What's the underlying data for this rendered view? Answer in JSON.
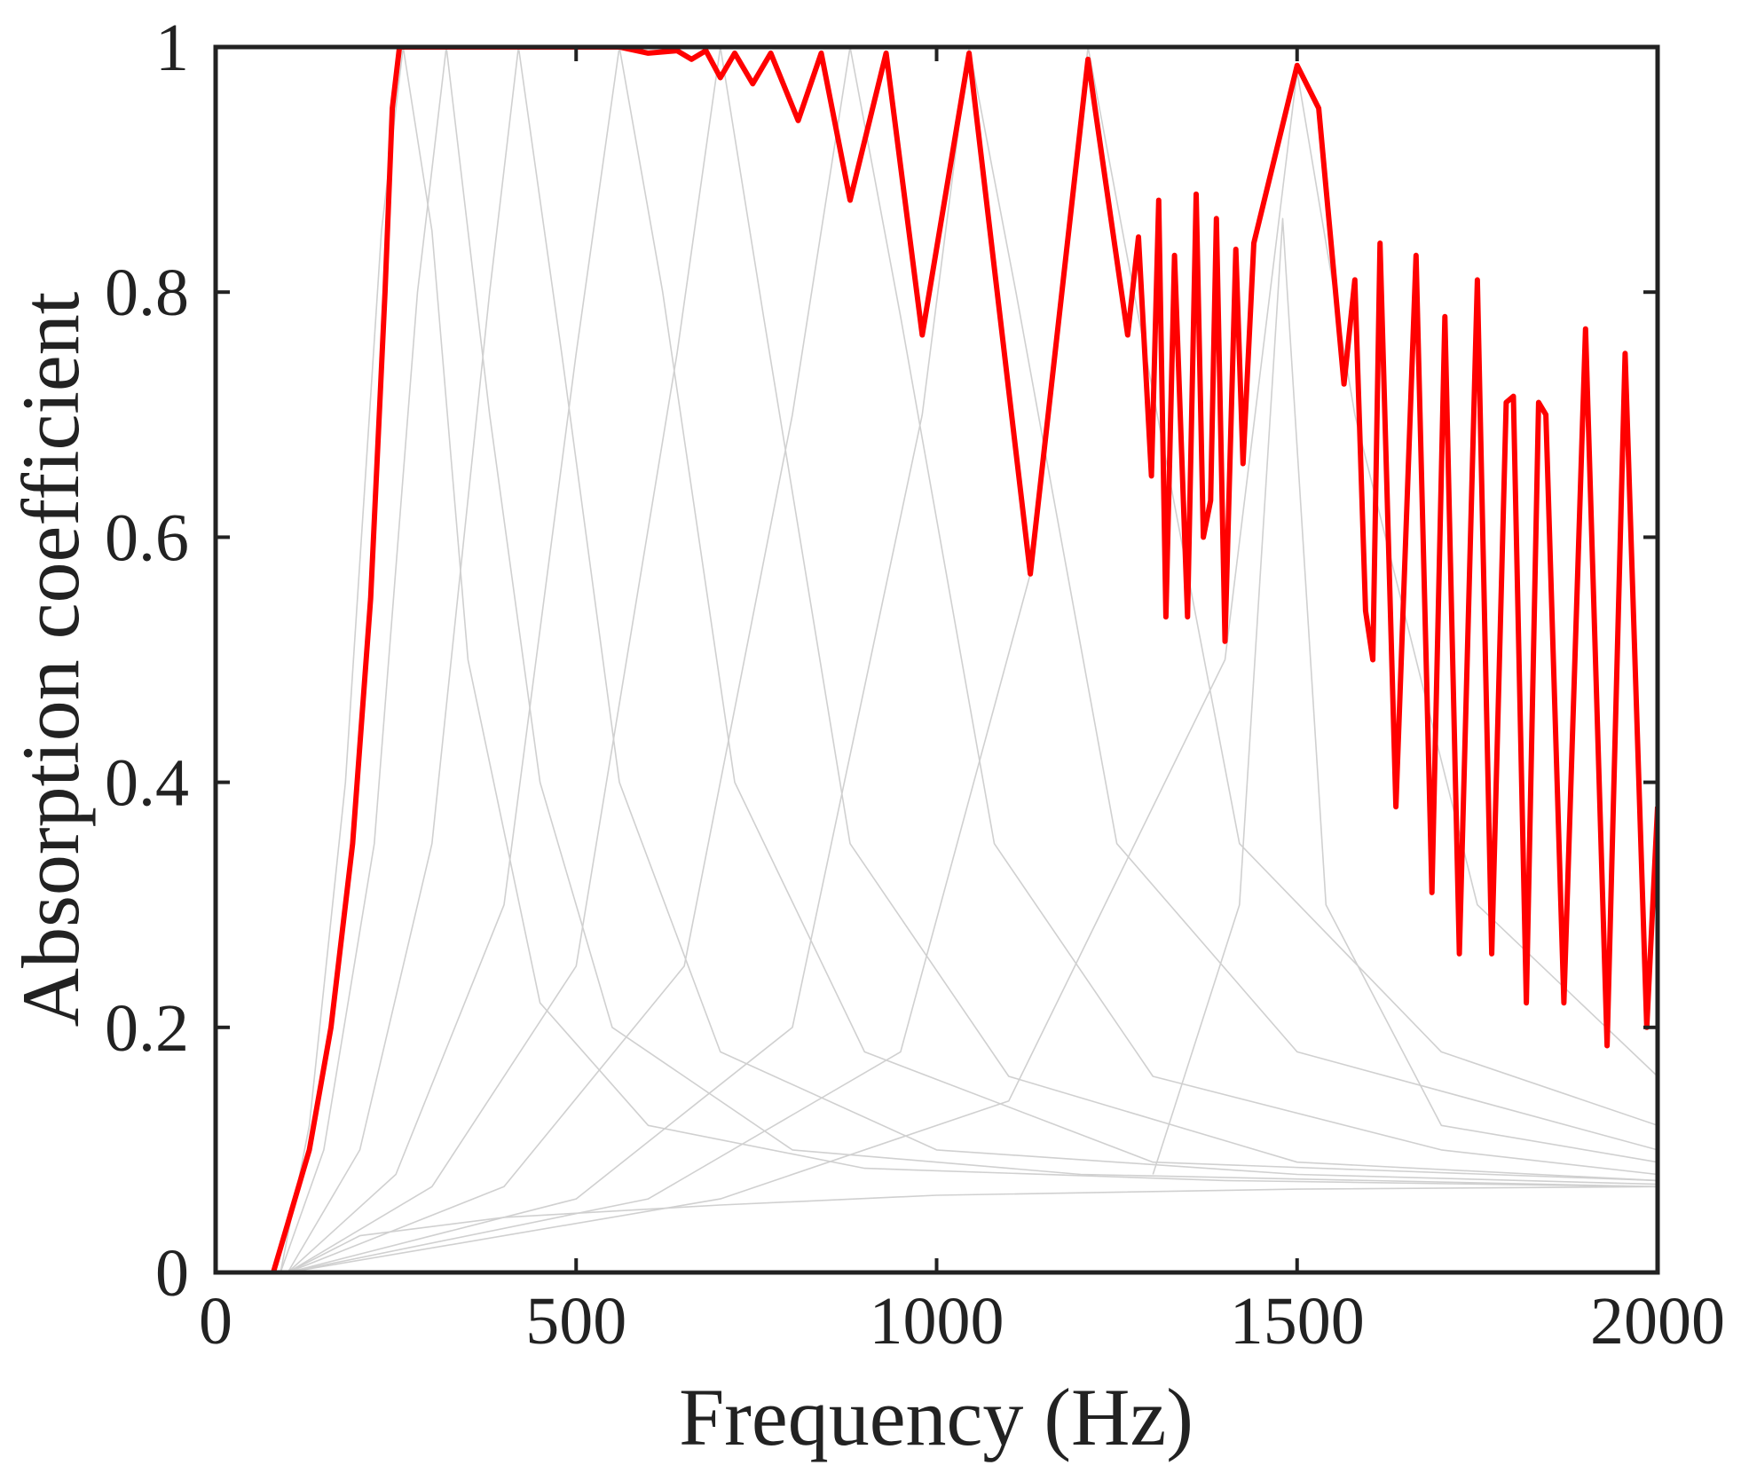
{
  "chart_data": {
    "type": "line",
    "xlabel": "Frequency (Hz)",
    "ylabel": "Absorption coefficient",
    "xlim": [
      0,
      2000
    ],
    "xticks": [
      0,
      500,
      1000,
      1500,
      2000
    ],
    "ylim": [
      0,
      1
    ],
    "yticks": [
      0,
      0.2,
      0.4,
      0.6,
      0.8,
      1
    ],
    "grid": false,
    "series": [
      {
        "color": "#d0d0d0",
        "x": [
          90,
          130,
          180,
          230,
          260,
          300,
          350,
          450,
          600,
          900,
          1400,
          2000
        ],
        "values": [
          0,
          0.12,
          0.4,
          0.85,
          1,
          0.85,
          0.5,
          0.22,
          0.12,
          0.085,
          0.075,
          0.07
        ]
      },
      {
        "color": "#d0d0d0",
        "x": [
          90,
          150,
          220,
          280,
          320,
          380,
          450,
          550,
          800,
          1200,
          2000
        ],
        "values": [
          0,
          0.1,
          0.35,
          0.8,
          1,
          0.7,
          0.4,
          0.2,
          0.1,
          0.08,
          0.07
        ]
      },
      {
        "color": "#d0d0d0",
        "x": [
          100,
          200,
          300,
          380,
          420,
          480,
          560,
          700,
          1000,
          1500,
          2000
        ],
        "values": [
          0,
          0.1,
          0.35,
          0.8,
          1,
          0.75,
          0.4,
          0.18,
          0.1,
          0.08,
          0.072
        ]
      },
      {
        "color": "#d0d0d0",
        "x": [
          100,
          250,
          400,
          500,
          560,
          620,
          720,
          900,
          1300,
          2000
        ],
        "values": [
          0,
          0.08,
          0.3,
          0.75,
          1,
          0.8,
          0.4,
          0.18,
          0.09,
          0.075
        ]
      },
      {
        "color": "#d0d0d0",
        "x": [
          100,
          300,
          500,
          640,
          700,
          760,
          880,
          1100,
          1500,
          2000
        ],
        "values": [
          0,
          0.07,
          0.25,
          0.75,
          1,
          0.78,
          0.35,
          0.16,
          0.09,
          0.075
        ]
      },
      {
        "color": "#d0d0d0",
        "x": [
          100,
          400,
          650,
          800,
          880,
          950,
          1080,
          1300,
          1700,
          2000
        ],
        "values": [
          0,
          0.07,
          0.25,
          0.7,
          1,
          0.78,
          0.35,
          0.16,
          0.1,
          0.08
        ]
      },
      {
        "color": "#d0d0d0",
        "x": [
          100,
          500,
          800,
          980,
          1045,
          1110,
          1250,
          1500,
          2000
        ],
        "values": [
          0,
          0.06,
          0.2,
          0.7,
          1,
          0.8,
          0.35,
          0.18,
          0.1
        ]
      },
      {
        "color": "#d0d0d0",
        "x": [
          100,
          600,
          950,
          1130,
          1210,
          1280,
          1420,
          1700,
          2000
        ],
        "values": [
          0,
          0.06,
          0.18,
          0.57,
          1,
          0.78,
          0.35,
          0.18,
          0.12
        ]
      },
      {
        "color": "#d0d0d0",
        "x": [
          100,
          700,
          1100,
          1400,
          1500,
          1580,
          1750,
          2000
        ],
        "values": [
          0,
          0.06,
          0.14,
          0.5,
          0.98,
          0.7,
          0.3,
          0.16
        ]
      },
      {
        "color": "#d0d0d0",
        "x": [
          1300,
          1420,
          1480,
          1540,
          1700,
          2000
        ],
        "values": [
          0.08,
          0.3,
          0.86,
          0.3,
          0.12,
          0.09
        ]
      },
      {
        "color": "#d0d0d0",
        "x": [
          100,
          200,
          400,
          700,
          1000,
          1500,
          2000
        ],
        "values": [
          0,
          0.03,
          0.045,
          0.055,
          0.063,
          0.068,
          0.07
        ]
      },
      {
        "color": "#ff0000",
        "x": [
          80,
          100,
          130,
          160,
          190,
          215,
          235,
          245,
          255,
          500,
          560,
          600,
          640,
          660,
          680,
          700,
          720,
          745,
          770,
          808,
          840,
          880,
          930,
          980,
          1045,
          1130,
          1210,
          1265,
          1280,
          1298,
          1308,
          1318,
          1330,
          1348,
          1360,
          1370,
          1380,
          1388,
          1400,
          1415,
          1425,
          1440,
          1500,
          1530,
          1565,
          1580,
          1595,
          1605,
          1615,
          1637,
          1665,
          1687,
          1705,
          1725,
          1750,
          1770,
          1790,
          1800,
          1818,
          1835,
          1845,
          1870,
          1900,
          1930,
          1955,
          1985,
          2000
        ],
        "values": [
          0,
          0.04,
          0.1,
          0.2,
          0.35,
          0.55,
          0.8,
          0.95,
          1,
          1,
          1,
          0.995,
          0.997,
          0.99,
          0.997,
          0.975,
          0.995,
          0.97,
          0.995,
          0.94,
          0.995,
          0.875,
          0.995,
          0.765,
          0.995,
          0.57,
          0.99,
          0.765,
          0.845,
          0.65,
          0.875,
          0.535,
          0.83,
          0.535,
          0.88,
          0.6,
          0.63,
          0.86,
          0.515,
          0.835,
          0.66,
          0.84,
          0.985,
          0.95,
          0.725,
          0.81,
          0.54,
          0.5,
          0.84,
          0.38,
          0.83,
          0.31,
          0.78,
          0.26,
          0.81,
          0.26,
          0.71,
          0.715,
          0.22,
          0.71,
          0.7,
          0.22,
          0.77,
          0.185,
          0.75,
          0.2,
          0.38
        ]
      }
    ]
  }
}
